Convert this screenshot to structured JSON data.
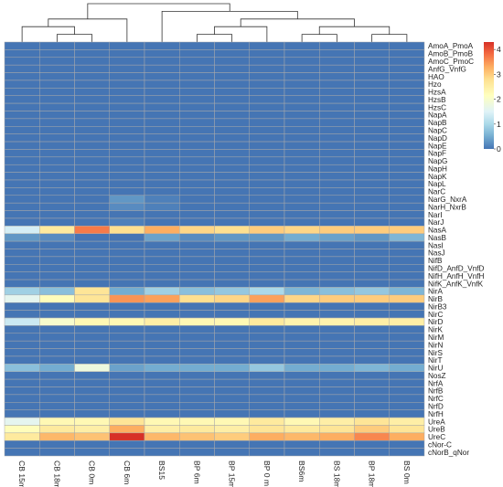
{
  "chart_data": {
    "type": "heatmap",
    "title": "",
    "xlabel": "",
    "ylabel": "",
    "columns": [
      "CB 15m",
      "CB 18m",
      "CB 0m",
      "CB 6m",
      "BS15",
      "BP 6m",
      "BP 15m",
      "BP 0 m",
      "BS6m",
      "BS 18m",
      "BP 18m",
      "BS 0m"
    ],
    "rows": [
      "AmoA_PmoA",
      "AmoB_PmoB",
      "AmoC_PmoC",
      "AnfG_VnfG",
      "HAO",
      "Hzo",
      "HzsA",
      "HzsB",
      "HzsC",
      "NapA",
      "NapB",
      "NapC",
      "NapD",
      "NapE",
      "NapF",
      "NapG",
      "NapH",
      "NapK",
      "NapL",
      "NarC",
      "NarG_NxrA",
      "NarH_NxrB",
      "NarI",
      "NarJ",
      "NasA",
      "NasB",
      "NasI",
      "NasJ",
      "NifB",
      "NifD_AnfD_VnfD",
      "NifH_AnfH_VnfH",
      "NifK_AnfK_VnfK",
      "NirA",
      "NirB",
      "NirB3",
      "NirC",
      "NirD",
      "NirK",
      "NirM",
      "NirN",
      "NirS",
      "NirT",
      "NirU",
      "NosZ",
      "NrfA",
      "NrfB",
      "NrfC",
      "NrfD",
      "NrfH",
      "UreA",
      "UreB",
      "UreC",
      "cNor-C",
      "cNorB_qNor"
    ],
    "values": [
      [
        0,
        0,
        0,
        0,
        0,
        0,
        0,
        0,
        0,
        0,
        0,
        0
      ],
      [
        0,
        0,
        0,
        0,
        0,
        0,
        0,
        0,
        0,
        0,
        0,
        0
      ],
      [
        0,
        0,
        0,
        0,
        0,
        0,
        0,
        0,
        0,
        0,
        0,
        0
      ],
      [
        0,
        0,
        0,
        0,
        0,
        0,
        0,
        0,
        0,
        0,
        0,
        0
      ],
      [
        0,
        0,
        0,
        0,
        0,
        0,
        0,
        0,
        0,
        0,
        0,
        0
      ],
      [
        0,
        0,
        0,
        0,
        0,
        0,
        0,
        0,
        0,
        0,
        0,
        0
      ],
      [
        0,
        0,
        0,
        0,
        0,
        0,
        0,
        0,
        0,
        0,
        0,
        0
      ],
      [
        0,
        0,
        0,
        0,
        0,
        0,
        0,
        0,
        0,
        0,
        0,
        0
      ],
      [
        0,
        0,
        0,
        0,
        0,
        0,
        0,
        0,
        0,
        0,
        0,
        0
      ],
      [
        0,
        0,
        0,
        0,
        0,
        0,
        0,
        0,
        0,
        0,
        0,
        0
      ],
      [
        0,
        0,
        0,
        0,
        0,
        0,
        0,
        0,
        0,
        0,
        0,
        0
      ],
      [
        0,
        0,
        0,
        0,
        0,
        0,
        0,
        0,
        0,
        0,
        0,
        0
      ],
      [
        0,
        0,
        0,
        0,
        0,
        0,
        0,
        0,
        0,
        0,
        0,
        0
      ],
      [
        0,
        0,
        0,
        0,
        0,
        0,
        0,
        0,
        0,
        0,
        0,
        0
      ],
      [
        0,
        0,
        0,
        0,
        0,
        0,
        0,
        0,
        0,
        0,
        0,
        0
      ],
      [
        0,
        0,
        0,
        0,
        0,
        0,
        0,
        0,
        0,
        0,
        0,
        0
      ],
      [
        0,
        0,
        0,
        0,
        0,
        0,
        0,
        0,
        0,
        0,
        0,
        0
      ],
      [
        0,
        0,
        0,
        0,
        0,
        0,
        0,
        0,
        0,
        0,
        0,
        0
      ],
      [
        0,
        0,
        0,
        0,
        0,
        0,
        0,
        0,
        0,
        0,
        0,
        0
      ],
      [
        0,
        0,
        0,
        0,
        0,
        0,
        0,
        0,
        0,
        0,
        0,
        0
      ],
      [
        0,
        0,
        0,
        0.3,
        0.1,
        0,
        0,
        0,
        0,
        0,
        0,
        0
      ],
      [
        0,
        0,
        0,
        0.2,
        0.1,
        0,
        0,
        0,
        0,
        0,
        0,
        0
      ],
      [
        0,
        0,
        0,
        0,
        0,
        0,
        0,
        0,
        0,
        0,
        0,
        0
      ],
      [
        0,
        0,
        0,
        0.1,
        0,
        0,
        0,
        0,
        0,
        0,
        0,
        0
      ],
      [
        1.4,
        2.6,
        3.7,
        2.8,
        3.3,
        2.9,
        2.8,
        3.0,
        2.9,
        3.0,
        3.0,
        3.0
      ],
      [
        0.3,
        0.2,
        0,
        0,
        0.4,
        0.2,
        0.3,
        0.3,
        0.5,
        0.4,
        0.3,
        0.6
      ],
      [
        0,
        0,
        0,
        0,
        0,
        0,
        0,
        0,
        0,
        0,
        0,
        0
      ],
      [
        0,
        0,
        0,
        0,
        0,
        0,
        0,
        0,
        0,
        0,
        0,
        0
      ],
      [
        0,
        0,
        0,
        0,
        0,
        0,
        0,
        0,
        0,
        0,
        0,
        0
      ],
      [
        0,
        0,
        0,
        0,
        0,
        0,
        0,
        0,
        0,
        0,
        0,
        0
      ],
      [
        0,
        0,
        0,
        0,
        0,
        0,
        0,
        0,
        0,
        0,
        0,
        0
      ],
      [
        0,
        0,
        0,
        0,
        0,
        0,
        0,
        0,
        0,
        0,
        0,
        0
      ],
      [
        0.9,
        0.7,
        2.7,
        0.5,
        0.9,
        0.7,
        0.8,
        1.0,
        0.6,
        0.7,
        0.8,
        0.6
      ],
      [
        1.6,
        2.2,
        2.7,
        3.5,
        3.4,
        2.8,
        2.9,
        3.4,
        2.9,
        3.0,
        3.0,
        3.0
      ],
      [
        0,
        0,
        0,
        0,
        0,
        0,
        0,
        0,
        0,
        0,
        0,
        0
      ],
      [
        0,
        0,
        0,
        0,
        0,
        0,
        0,
        0,
        0,
        0,
        0,
        0
      ],
      [
        1.3,
        2.0,
        2.3,
        2.3,
        2.5,
        2.3,
        2.3,
        2.6,
        2.4,
        2.4,
        2.5,
        2.5
      ],
      [
        0,
        0,
        0,
        0,
        0,
        0,
        0,
        0,
        0,
        0,
        0,
        0
      ],
      [
        0,
        0,
        0,
        0,
        0,
        0,
        0,
        0,
        0,
        0,
        0,
        0
      ],
      [
        0,
        0,
        0,
        0,
        0,
        0,
        0,
        0,
        0,
        0,
        0,
        0
      ],
      [
        0,
        0,
        0,
        0,
        0,
        0,
        0,
        0,
        0,
        0,
        0,
        0
      ],
      [
        0,
        0,
        0,
        0,
        0,
        0,
        0,
        0,
        0,
        0,
        0,
        0
      ],
      [
        0.7,
        0.5,
        1.8,
        0.4,
        0.5,
        0.5,
        0.5,
        0.8,
        0.5,
        0.5,
        0.6,
        0.5
      ],
      [
        0,
        0,
        0,
        0,
        0,
        0,
        0,
        0,
        0,
        0,
        0,
        0
      ],
      [
        0,
        0,
        0,
        0,
        0,
        0,
        0,
        0,
        0,
        0,
        0,
        0
      ],
      [
        0,
        0,
        0,
        0,
        0,
        0,
        0,
        0,
        0,
        0,
        0,
        0
      ],
      [
        0,
        0,
        0,
        0,
        0,
        0,
        0,
        0,
        0,
        0,
        0,
        0
      ],
      [
        0,
        0,
        0,
        0,
        0,
        0,
        0,
        0,
        0,
        0,
        0,
        0
      ],
      [
        0,
        0,
        0,
        0,
        0,
        0,
        0,
        0,
        0,
        0,
        0,
        0
      ],
      [
        1.6,
        2.3,
        2.3,
        2.7,
        2.3,
        2.3,
        2.3,
        2.6,
        2.3,
        2.5,
        2.7,
        2.5
      ],
      [
        2.2,
        2.6,
        2.5,
        3.3,
        2.5,
        2.6,
        2.5,
        2.7,
        2.6,
        2.7,
        3.0,
        2.7
      ],
      [
        2.6,
        3.2,
        3.1,
        4.3,
        3.2,
        3.1,
        3.0,
        3.3,
        3.2,
        3.3,
        3.6,
        3.3
      ],
      [
        0,
        0,
        0,
        0,
        0,
        0,
        0,
        0,
        0,
        0,
        0,
        0
      ],
      [
        0,
        0,
        0,
        0,
        0,
        0,
        0,
        0,
        0,
        0,
        0,
        0
      ]
    ],
    "colorscale": {
      "min": 0,
      "max": 4.3,
      "stops": [
        {
          "value": 0,
          "color": "#4575b4"
        },
        {
          "value": 0.5,
          "color": "#74add1"
        },
        {
          "value": 1,
          "color": "#abd9e9"
        },
        {
          "value": 1.5,
          "color": "#e0f3f8"
        },
        {
          "value": 2.15,
          "color": "#ffffbf"
        },
        {
          "value": 2.8,
          "color": "#fee090"
        },
        {
          "value": 3.3,
          "color": "#fdae61"
        },
        {
          "value": 3.8,
          "color": "#f46d43"
        },
        {
          "value": 4.3,
          "color": "#d73027"
        }
      ],
      "ticks": [
        0,
        1,
        2,
        3,
        4
      ]
    },
    "cell_border_color": "#a9a9a9",
    "legend_placement": "top-right",
    "column_dendrogram": true,
    "column_dendrogram_structure": [
      [
        [
          0,
          [
            1,
            2
          ]
        ],
        3
      ],
      [
        4,
        [
          [
            [
              5,
              6
            ],
            7
          ],
          [
            [
              8,
              9
            ],
            [
              10,
              11
            ]
          ]
        ]
      ]
    ]
  }
}
